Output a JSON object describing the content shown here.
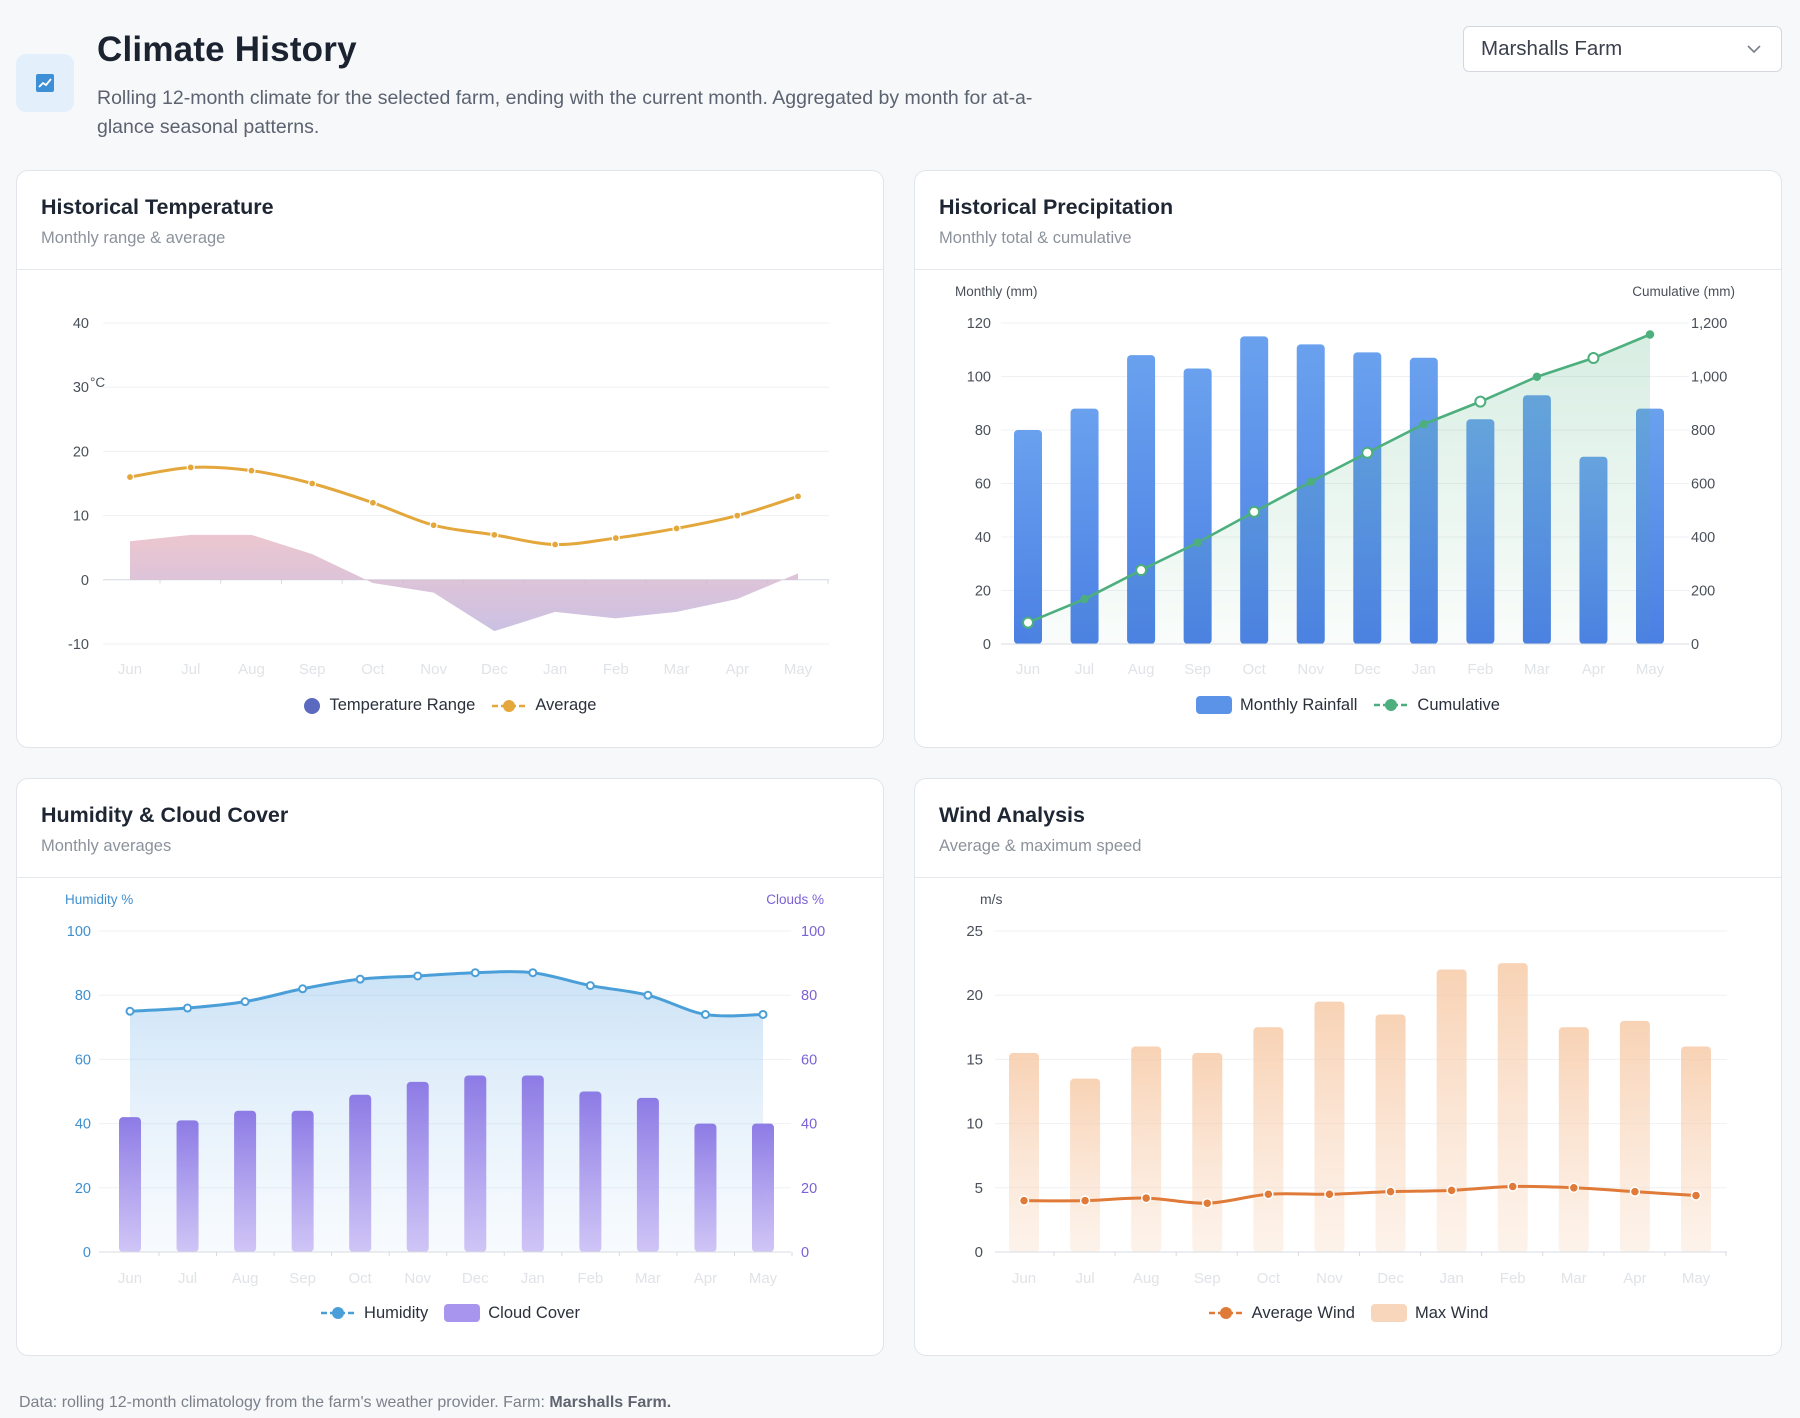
{
  "header": {
    "title": "Climate History",
    "subtitle": "Rolling 12-month climate for the selected farm, ending with the current month. Aggregated by month for at-a-glance seasonal patterns."
  },
  "farm_select": {
    "value": "Marshalls Farm"
  },
  "cards": {
    "temperature": {
      "title": "Historical Temperature",
      "subtitle": "Monthly range & average",
      "legend": [
        "Temperature Range",
        "Average"
      ]
    },
    "precipitation": {
      "title": "Historical Precipitation",
      "subtitle": "Monthly total & cumulative",
      "legend": [
        "Monthly Rainfall",
        "Cumulative"
      ]
    },
    "humidity": {
      "title": "Humidity & Cloud Cover",
      "subtitle": "Monthly averages",
      "legend": [
        "Humidity",
        "Cloud Cover"
      ]
    },
    "wind": {
      "title": "Wind Analysis",
      "subtitle": "Average & maximum speed",
      "legend": [
        "Average Wind",
        "Max Wind"
      ]
    }
  },
  "footer": {
    "text": "Data: rolling 12-month climatology from the farm's weather provider. Farm:",
    "farm": "Marshalls Farm."
  },
  "chart_data": [
    {
      "id": "temperature",
      "type": "line",
      "ylabel": "°C",
      "ylim": [
        -10,
        40
      ],
      "yticks": [
        -10,
        0,
        10,
        20,
        30,
        40
      ],
      "categories": [
        "Jun",
        "Jul",
        "Aug",
        "Sep",
        "Oct",
        "Nov",
        "Dec",
        "Jan",
        "Feb",
        "Mar",
        "Apr",
        "May"
      ],
      "series": [
        {
          "name": "Temperature Range",
          "type": "area",
          "values": [
            6,
            7,
            7,
            4,
            -0.5,
            -2,
            -8,
            -5,
            -6,
            -5,
            -3,
            1
          ]
        },
        {
          "name": "Average",
          "type": "line",
          "values": [
            16,
            17.5,
            17,
            15,
            12,
            8.5,
            7,
            5.5,
            6.5,
            8,
            10,
            13
          ]
        }
      ],
      "colors": {
        "range": "#5b6abf",
        "average": "#e3a73b"
      }
    },
    {
      "id": "precipitation",
      "type": "bar",
      "ylabel": "Monthly (mm)",
      "y2label": "Cumulative (mm)",
      "ylim": [
        0,
        120
      ],
      "y2lim": [
        0,
        1200
      ],
      "yticks": [
        0,
        20,
        40,
        60,
        80,
        100,
        120
      ],
      "y2ticks": [
        "0",
        "200",
        "400",
        "600",
        "800",
        "1,000",
        "1,200"
      ],
      "categories": [
        "Jun",
        "Jul",
        "Aug",
        "Sep",
        "Oct",
        "Nov",
        "Dec",
        "Jan",
        "Feb",
        "Mar",
        "Apr",
        "May"
      ],
      "series": [
        {
          "name": "Monthly Rainfall",
          "type": "bar",
          "axis": "left",
          "values": [
            80,
            88,
            108,
            103,
            115,
            112,
            109,
            107,
            84,
            93,
            70,
            88
          ]
        },
        {
          "name": "Cumulative",
          "type": "line",
          "axis": "right",
          "values": [
            80,
            168,
            276,
            379,
            494,
            606,
            715,
            822,
            906,
            999,
            1069,
            1157
          ]
        }
      ],
      "colors": {
        "bar": "#5b93e9",
        "line": "#4caf7d"
      }
    },
    {
      "id": "humidity",
      "type": "bar",
      "ylabel": "Humidity %",
      "y2label": "Clouds %",
      "ylim": [
        0,
        100
      ],
      "y2lim": [
        0,
        100
      ],
      "yticks": [
        0,
        20,
        40,
        60,
        80,
        100
      ],
      "categories": [
        "Jun",
        "Jul",
        "Aug",
        "Sep",
        "Oct",
        "Nov",
        "Dec",
        "Jan",
        "Feb",
        "Mar",
        "Apr",
        "May"
      ],
      "series": [
        {
          "name": "Humidity",
          "type": "line",
          "axis": "left",
          "values": [
            75,
            76,
            78,
            82,
            85,
            86,
            87,
            87,
            83,
            80,
            74,
            74
          ]
        },
        {
          "name": "Cloud Cover",
          "type": "bar",
          "axis": "right",
          "values": [
            42,
            41,
            44,
            44,
            49,
            53,
            55,
            55,
            50,
            48,
            40,
            40
          ]
        }
      ],
      "colors": {
        "line": "#4a9fd8",
        "bar": "#8f7de6",
        "left_axis": "#3f8fcf",
        "right_axis": "#7b61d6"
      }
    },
    {
      "id": "wind",
      "type": "bar",
      "ylabel": "m/s",
      "ylim": [
        0,
        25
      ],
      "yticks": [
        0,
        5,
        10,
        15,
        20,
        25
      ],
      "categories": [
        "Jun",
        "Jul",
        "Aug",
        "Sep",
        "Oct",
        "Nov",
        "Dec",
        "Jan",
        "Feb",
        "Mar",
        "Apr",
        "May"
      ],
      "series": [
        {
          "name": "Max Wind",
          "type": "bar",
          "values": [
            15.5,
            13.5,
            16,
            15.5,
            17.5,
            19.5,
            18.5,
            22,
            22.5,
            17.5,
            18,
            16
          ]
        },
        {
          "name": "Average Wind",
          "type": "line",
          "values": [
            4,
            4,
            4.2,
            3.8,
            4.5,
            4.5,
            4.7,
            4.8,
            5.1,
            5,
            4.7,
            4.4
          ]
        }
      ],
      "colors": {
        "line": "#e07a38",
        "bar": "#f6caa6"
      }
    }
  ]
}
